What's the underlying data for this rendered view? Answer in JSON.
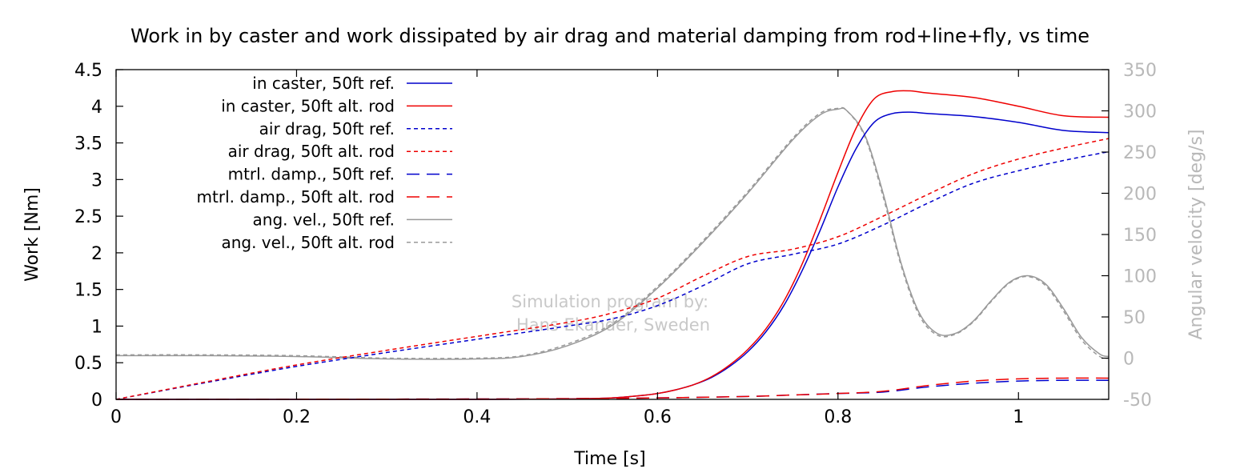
{
  "chart_data": {
    "type": "line",
    "title": "Work in by caster and work dissipated by air drag and material damping from rod+line+fly, vs time",
    "xlabel": "Time [s]",
    "ylabel": "Work [Nm]",
    "y2label": "Angular velocity [deg/s]",
    "xlim": [
      0,
      1.1
    ],
    "ylim": [
      0,
      4.5
    ],
    "y2lim": [
      -50,
      350
    ],
    "xticks": [
      0,
      0.2,
      0.4,
      0.6,
      0.8,
      1
    ],
    "xtick_labels": [
      "0",
      "0.2",
      "0.4",
      "0.6",
      "0.8",
      "1"
    ],
    "yticks": [
      0,
      0.5,
      1,
      1.5,
      2,
      2.5,
      3,
      3.5,
      4,
      4.5
    ],
    "ytick_labels": [
      "0",
      "0.5",
      "1",
      "1.5",
      "2",
      "2.5",
      "3",
      "3.5",
      "4",
      "4.5"
    ],
    "y2ticks": [
      -50,
      0,
      50,
      100,
      150,
      200,
      250,
      300,
      350
    ],
    "y2tick_labels": [
      "-50",
      "0",
      "50",
      "100",
      "150",
      "200",
      "250",
      "300",
      "350"
    ],
    "legend_position": "top-left",
    "grid": false,
    "watermark": [
      "Simulation program by:",
      "Hans Ekander, Sweden"
    ],
    "series": [
      {
        "name": "in caster, 50ft ref.",
        "axis": "left",
        "color": "#0000cc",
        "dash": "solid",
        "x": [
          0,
          0.2,
          0.4,
          0.5,
          0.55,
          0.58,
          0.6,
          0.62,
          0.64,
          0.66,
          0.68,
          0.7,
          0.72,
          0.74,
          0.76,
          0.78,
          0.8,
          0.82,
          0.84,
          0.86,
          0.88,
          0.9,
          0.95,
          1.0,
          1.05,
          1.1
        ],
        "y": [
          0,
          0,
          0,
          0.005,
          0.02,
          0.05,
          0.08,
          0.13,
          0.2,
          0.3,
          0.45,
          0.65,
          0.92,
          1.28,
          1.75,
          2.3,
          2.9,
          3.42,
          3.78,
          3.9,
          3.92,
          3.9,
          3.86,
          3.78,
          3.67,
          3.64
        ]
      },
      {
        "name": "in caster, 50ft alt. rod",
        "axis": "left",
        "color": "#ee0000",
        "dash": "solid",
        "x": [
          0,
          0.2,
          0.4,
          0.5,
          0.55,
          0.58,
          0.6,
          0.62,
          0.64,
          0.66,
          0.68,
          0.7,
          0.72,
          0.74,
          0.76,
          0.78,
          0.8,
          0.82,
          0.84,
          0.86,
          0.88,
          0.9,
          0.95,
          1.0,
          1.05,
          1.1
        ],
        "y": [
          0,
          0,
          0,
          0.005,
          0.02,
          0.05,
          0.08,
          0.13,
          0.2,
          0.31,
          0.47,
          0.68,
          0.96,
          1.34,
          1.84,
          2.45,
          3.1,
          3.7,
          4.1,
          4.2,
          4.21,
          4.18,
          4.12,
          4.0,
          3.87,
          3.85
        ]
      },
      {
        "name": "air drag, 50ft ref.",
        "axis": "left",
        "color": "#0000cc",
        "dash": "short",
        "x": [
          0,
          0.1,
          0.2,
          0.3,
          0.4,
          0.5,
          0.55,
          0.6,
          0.65,
          0.7,
          0.75,
          0.8,
          0.85,
          0.9,
          0.95,
          1.0,
          1.05,
          1.1
        ],
        "y": [
          0,
          0.23,
          0.45,
          0.64,
          0.82,
          1.0,
          1.1,
          1.28,
          1.55,
          1.85,
          1.98,
          2.12,
          2.38,
          2.68,
          2.95,
          3.12,
          3.26,
          3.38
        ]
      },
      {
        "name": "air drag, 50ft alt. rod",
        "axis": "left",
        "color": "#ee0000",
        "dash": "short",
        "x": [
          0,
          0.1,
          0.2,
          0.3,
          0.4,
          0.5,
          0.55,
          0.6,
          0.65,
          0.7,
          0.75,
          0.8,
          0.85,
          0.9,
          0.95,
          1.0,
          1.05,
          1.1
        ],
        "y": [
          0,
          0.24,
          0.47,
          0.67,
          0.86,
          1.05,
          1.18,
          1.38,
          1.68,
          1.95,
          2.05,
          2.22,
          2.5,
          2.8,
          3.08,
          3.28,
          3.43,
          3.56
        ]
      },
      {
        "name": "mtrl. damp., 50ft ref.",
        "axis": "left",
        "color": "#0000cc",
        "dash": "long",
        "x": [
          0,
          0.2,
          0.4,
          0.5,
          0.6,
          0.7,
          0.75,
          0.8,
          0.85,
          0.9,
          0.95,
          1.0,
          1.05,
          1.1
        ],
        "y": [
          0,
          0.002,
          0.005,
          0.01,
          0.02,
          0.04,
          0.06,
          0.08,
          0.1,
          0.17,
          0.22,
          0.25,
          0.26,
          0.26
        ]
      },
      {
        "name": "mtrl. damp., 50ft alt. rod",
        "axis": "left",
        "color": "#ee0000",
        "dash": "long",
        "x": [
          0,
          0.2,
          0.4,
          0.5,
          0.6,
          0.7,
          0.75,
          0.8,
          0.85,
          0.9,
          0.95,
          1.0,
          1.05,
          1.1
        ],
        "y": [
          0,
          0.002,
          0.005,
          0.01,
          0.02,
          0.04,
          0.06,
          0.08,
          0.11,
          0.19,
          0.25,
          0.28,
          0.29,
          0.29
        ]
      },
      {
        "name": "ang. vel., 50ft ref.",
        "axis": "right",
        "color": "#999999",
        "dash": "solid",
        "x": [
          0,
          0.1,
          0.2,
          0.3,
          0.4,
          0.45,
          0.5,
          0.55,
          0.6,
          0.65,
          0.7,
          0.75,
          0.78,
          0.8,
          0.81,
          0.83,
          0.85,
          0.87,
          0.89,
          0.91,
          0.93,
          0.95,
          0.97,
          0.99,
          1.01,
          1.03,
          1.05,
          1.07,
          1.09,
          1.1
        ],
        "y": [
          3,
          3,
          2,
          -1,
          -1,
          2,
          15,
          40,
          85,
          140,
          200,
          265,
          295,
          302,
          300,
          270,
          200,
          115,
          55,
          30,
          30,
          45,
          70,
          92,
          100,
          90,
          60,
          25,
          5,
          2
        ]
      },
      {
        "name": "ang. vel., 50ft alt. rod",
        "axis": "right",
        "color": "#999999",
        "dash": "short",
        "x": [
          0,
          0.1,
          0.2,
          0.3,
          0.4,
          0.45,
          0.5,
          0.55,
          0.6,
          0.65,
          0.7,
          0.75,
          0.78,
          0.8,
          0.81,
          0.83,
          0.85,
          0.87,
          0.89,
          0.91,
          0.93,
          0.95,
          0.97,
          0.99,
          1.01,
          1.03,
          1.05,
          1.07,
          1.09,
          1.1
        ],
        "y": [
          4,
          4,
          3,
          0,
          0,
          3,
          17,
          42,
          87,
          142,
          202,
          267,
          297,
          303,
          300,
          268,
          196,
          112,
          52,
          28,
          29,
          44,
          69,
          91,
          99,
          88,
          57,
          22,
          2,
          0
        ]
      }
    ]
  }
}
